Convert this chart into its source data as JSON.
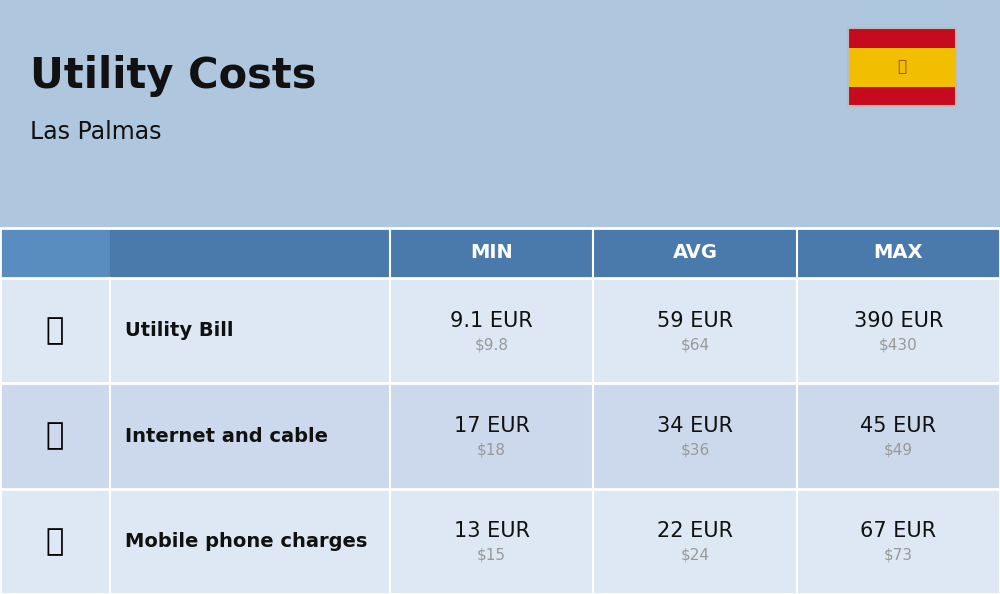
{
  "title": "Utility Costs",
  "subtitle": "Las Palmas",
  "background_color": "#aec6de",
  "header_color": "#4a7aab",
  "header_text_color": "#ffffff",
  "row_color_odd": "#dde8f4",
  "row_color_even": "#ccd9ec",
  "icon_col_color": "#aec6de",
  "text_color_main": "#111111",
  "text_color_usd": "#999999",
  "col_headers": [
    "MIN",
    "AVG",
    "MAX"
  ],
  "rows": [
    {
      "label": "Utility Bill",
      "min_eur": "9.1 EUR",
      "min_usd": "$9.8",
      "avg_eur": "59 EUR",
      "avg_usd": "$64",
      "max_eur": "390 EUR",
      "max_usd": "$430"
    },
    {
      "label": "Internet and cable",
      "min_eur": "17 EUR",
      "min_usd": "$18",
      "avg_eur": "34 EUR",
      "avg_usd": "$36",
      "max_eur": "45 EUR",
      "max_usd": "$49"
    },
    {
      "label": "Mobile phone charges",
      "min_eur": "13 EUR",
      "min_usd": "$15",
      "avg_eur": "22 EUR",
      "avg_usd": "$24",
      "max_eur": "67 EUR",
      "max_usd": "$73"
    }
  ],
  "flag_colors": {
    "red": "#c60b1e",
    "yellow": "#f1bf00"
  },
  "title_fontsize": 30,
  "subtitle_fontsize": 17,
  "header_fontsize": 14,
  "label_fontsize": 14,
  "value_fontsize": 15,
  "usd_fontsize": 11
}
